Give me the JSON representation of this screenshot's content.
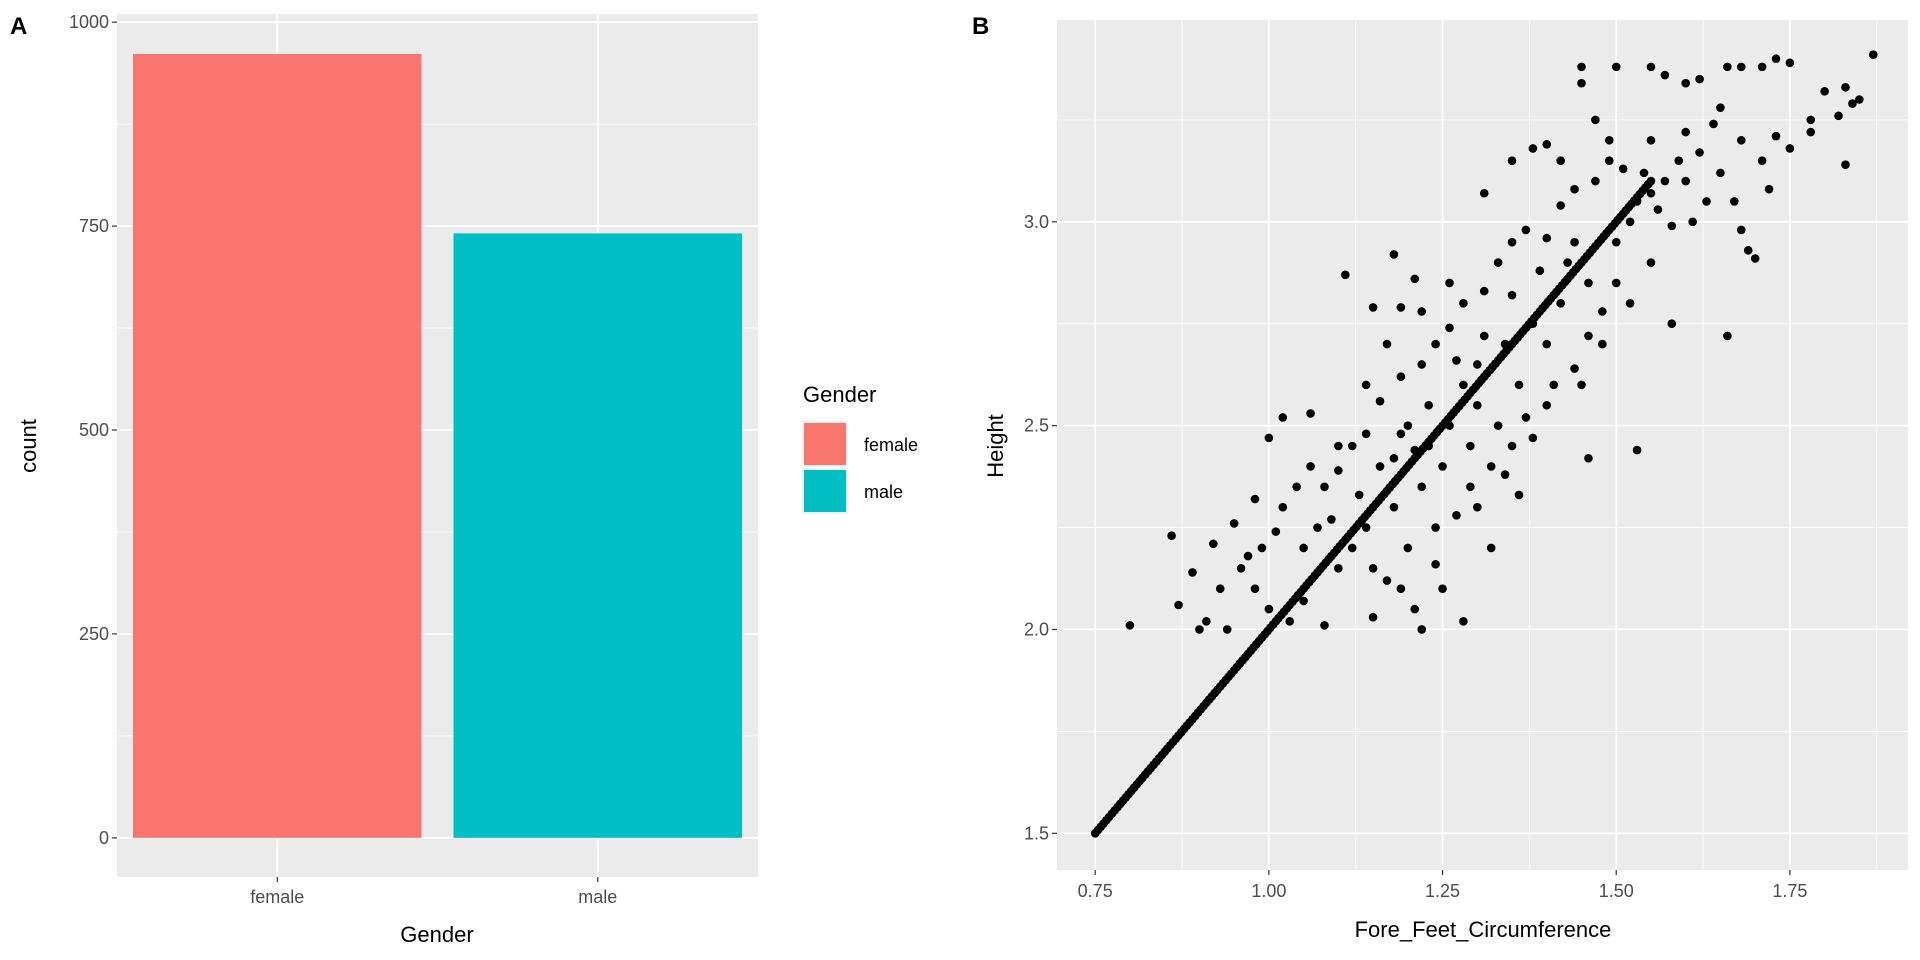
{
  "chart_data": [
    {
      "type": "bar",
      "panel_tag": "A",
      "title": "",
      "xlabel": "Gender",
      "ylabel": "count",
      "categories": [
        "female",
        "male"
      ],
      "values": [
        961,
        741
      ],
      "colors": [
        "#F8766D",
        "#00BFC4"
      ],
      "ylim": [
        -48,
        1010
      ],
      "yticks": [
        0,
        250,
        500,
        750,
        1000
      ],
      "ytick_labels": [
        "0",
        "250",
        "500",
        "750",
        "1000"
      ],
      "grid": true,
      "legend": {
        "title": "Gender",
        "position": "right",
        "entries": [
          "female",
          "male"
        ]
      }
    },
    {
      "type": "scatter",
      "panel_tag": "B",
      "title": "",
      "xlabel": "Fore_Feet_Circumference",
      "ylabel": "Height",
      "xlim": [
        0.695,
        1.92
      ],
      "ylim": [
        1.41,
        3.495
      ],
      "xticks": [
        0.75,
        1.0,
        1.25,
        1.5,
        1.75
      ],
      "xtick_labels": [
        "0.75",
        "1.00",
        "1.25",
        "1.50",
        "1.75"
      ],
      "yticks": [
        1.5,
        2.0,
        2.5,
        3.0
      ],
      "ytick_labels": [
        "1.5",
        "2.0",
        "2.5",
        "3.0"
      ],
      "grid": true,
      "point_color": "#000000",
      "diagonal_series": {
        "x_from": 0.75,
        "x_to": 1.55,
        "slope": 2,
        "intercept": 0,
        "step": 0.004
      },
      "points": [
        [
          0.8,
          2.01
        ],
        [
          0.86,
          2.23
        ],
        [
          0.87,
          2.06
        ],
        [
          0.9,
          2.0
        ],
        [
          0.91,
          2.02
        ],
        [
          0.94,
          2.0
        ],
        [
          0.89,
          2.14
        ],
        [
          0.92,
          2.21
        ],
        [
          0.95,
          2.26
        ],
        [
          0.98,
          2.32
        ],
        [
          1.0,
          2.47
        ],
        [
          1.02,
          2.52
        ],
        [
          1.06,
          2.53
        ],
        [
          1.11,
          2.87
        ],
        [
          1.15,
          2.79
        ],
        [
          1.18,
          2.92
        ],
        [
          1.19,
          2.79
        ],
        [
          1.21,
          2.86
        ],
        [
          1.28,
          2.02
        ],
        [
          1.22,
          2.0
        ],
        [
          1.25,
          2.1
        ],
        [
          1.32,
          2.2
        ],
        [
          1.31,
          3.07
        ],
        [
          1.35,
          3.15
        ],
        [
          1.38,
          3.18
        ],
        [
          1.4,
          3.19
        ],
        [
          1.45,
          3.38
        ],
        [
          1.45,
          3.34
        ],
        [
          1.5,
          3.38
        ],
        [
          1.55,
          3.38
        ],
        [
          1.57,
          3.36
        ],
        [
          1.6,
          3.34
        ],
        [
          1.62,
          3.35
        ],
        [
          1.66,
          3.38
        ],
        [
          1.68,
          3.38
        ],
        [
          1.71,
          3.38
        ],
        [
          1.73,
          3.4
        ],
        [
          1.75,
          3.39
        ],
        [
          1.8,
          3.32
        ],
        [
          1.83,
          3.33
        ],
        [
          1.85,
          3.3
        ],
        [
          1.87,
          3.41
        ],
        [
          1.84,
          3.29
        ],
        [
          1.82,
          3.26
        ],
        [
          1.78,
          3.22
        ],
        [
          1.83,
          3.14
        ],
        [
          1.66,
          2.72
        ],
        [
          1.53,
          2.44
        ],
        [
          1.46,
          2.42
        ],
        [
          1.7,
          2.91
        ],
        [
          1.69,
          2.93
        ],
        [
          1.68,
          2.98
        ],
        [
          1.72,
          3.08
        ],
        [
          1.75,
          3.18
        ],
        [
          1.73,
          3.21
        ],
        [
          1.65,
          3.28
        ],
        [
          1.62,
          3.17
        ],
        [
          1.59,
          3.15
        ],
        [
          1.55,
          3.07
        ],
        [
          1.52,
          3.0
        ],
        [
          1.48,
          2.78
        ],
        [
          1.44,
          2.64
        ],
        [
          1.4,
          2.55
        ],
        [
          1.38,
          2.47
        ],
        [
          1.36,
          2.33
        ],
        [
          1.3,
          2.3
        ],
        [
          1.27,
          2.28
        ],
        [
          1.24,
          2.16
        ],
        [
          1.2,
          2.2
        ],
        [
          1.17,
          2.12
        ],
        [
          1.15,
          2.03
        ],
        [
          1.08,
          2.01
        ],
        [
          1.03,
          2.02
        ],
        [
          1.05,
          2.07
        ],
        [
          1.0,
          2.05
        ],
        [
          0.98,
          2.1
        ],
        [
          0.97,
          2.18
        ],
        [
          1.02,
          2.3
        ],
        [
          1.05,
          2.2
        ],
        [
          1.08,
          2.35
        ],
        [
          1.1,
          2.39
        ],
        [
          1.12,
          2.45
        ],
        [
          1.14,
          2.48
        ],
        [
          1.16,
          2.56
        ],
        [
          1.19,
          2.62
        ],
        [
          1.22,
          2.65
        ],
        [
          1.24,
          2.7
        ],
        [
          1.26,
          2.74
        ],
        [
          1.28,
          2.8
        ],
        [
          1.31,
          2.83
        ],
        [
          1.33,
          2.9
        ],
        [
          1.35,
          2.95
        ],
        [
          1.37,
          2.98
        ],
        [
          1.4,
          2.96
        ],
        [
          1.42,
          3.04
        ],
        [
          1.44,
          3.08
        ],
        [
          1.47,
          3.1
        ],
        [
          1.49,
          3.15
        ],
        [
          1.51,
          3.13
        ],
        [
          1.54,
          3.12
        ],
        [
          1.56,
          3.03
        ],
        [
          1.58,
          2.99
        ],
        [
          1.6,
          3.1
        ],
        [
          1.63,
          3.05
        ],
        [
          1.28,
          2.6
        ],
        [
          1.3,
          2.55
        ],
        [
          1.33,
          2.5
        ],
        [
          1.35,
          2.45
        ],
        [
          1.25,
          2.4
        ],
        [
          1.22,
          2.35
        ],
        [
          1.18,
          2.3
        ],
        [
          1.14,
          2.25
        ],
        [
          1.12,
          2.2
        ],
        [
          1.1,
          2.15
        ],
        [
          1.26,
          2.5
        ],
        [
          1.3,
          2.65
        ],
        [
          1.34,
          2.7
        ],
        [
          1.38,
          2.75
        ],
        [
          1.42,
          2.8
        ],
        [
          1.46,
          2.85
        ],
        [
          1.5,
          2.85
        ],
        [
          1.36,
          2.6
        ],
        [
          1.4,
          2.7
        ],
        [
          1.44,
          2.95
        ],
        [
          1.26,
          2.85
        ],
        [
          1.22,
          2.78
        ],
        [
          1.17,
          2.7
        ],
        [
          1.14,
          2.6
        ],
        [
          1.1,
          2.45
        ],
        [
          1.06,
          2.4
        ],
        [
          1.04,
          2.35
        ],
        [
          0.96,
          2.15
        ],
        [
          0.93,
          2.1
        ],
        [
          1.2,
          2.5
        ],
        [
          1.23,
          2.45
        ],
        [
          1.18,
          2.42
        ],
        [
          1.16,
          2.4
        ],
        [
          1.32,
          2.4
        ],
        [
          1.34,
          2.38
        ],
        [
          1.29,
          2.45
        ],
        [
          1.45,
          2.6
        ],
        [
          1.48,
          2.7
        ],
        [
          1.52,
          2.8
        ],
        [
          1.55,
          2.9
        ],
        [
          1.58,
          2.75
        ],
        [
          1.49,
          3.2
        ],
        [
          1.47,
          3.25
        ],
        [
          1.42,
          3.15
        ],
        [
          1.55,
          3.2
        ],
        [
          1.6,
          3.22
        ],
        [
          1.64,
          3.24
        ],
        [
          1.68,
          3.2
        ],
        [
          1.71,
          3.15
        ],
        [
          1.78,
          3.25
        ],
        [
          1.21,
          2.44
        ],
        [
          1.19,
          2.48
        ],
        [
          1.23,
          2.55
        ],
        [
          1.27,
          2.66
        ],
        [
          1.31,
          2.72
        ],
        [
          1.35,
          2.82
        ],
        [
          1.39,
          2.88
        ],
        [
          1.43,
          2.9
        ],
        [
          1.13,
          2.33
        ],
        [
          1.09,
          2.27
        ],
        [
          1.07,
          2.25
        ],
        [
          1.01,
          2.24
        ],
        [
          0.99,
          2.2
        ],
        [
          1.15,
          2.15
        ],
        [
          1.19,
          2.1
        ],
        [
          1.21,
          2.05
        ],
        [
          1.24,
          2.25
        ],
        [
          1.29,
          2.35
        ],
        [
          1.37,
          2.52
        ],
        [
          1.41,
          2.6
        ],
        [
          1.46,
          2.72
        ],
        [
          1.5,
          2.95
        ],
        [
          1.53,
          3.05
        ],
        [
          1.57,
          3.1
        ],
        [
          1.61,
          3.0
        ],
        [
          1.65,
          3.12
        ],
        [
          1.67,
          3.05
        ]
      ]
    }
  ]
}
